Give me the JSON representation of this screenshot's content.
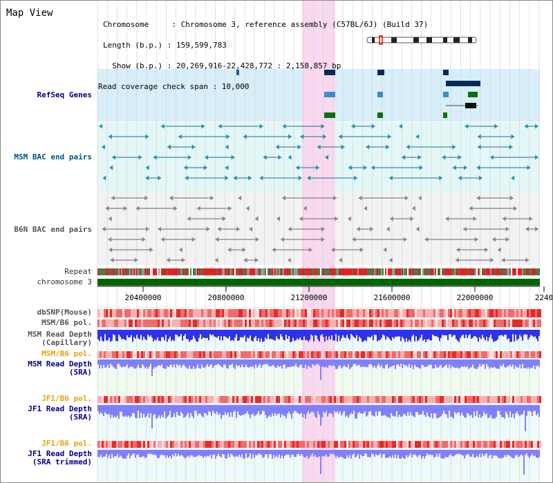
{
  "title": "Map View",
  "header": {
    "line1": "Chromosome     : Chromosome 3, reference assembly (C57BL/6J) (Build 37)",
    "line2": "Length (b.p.) : 159,599,783",
    "line3": "  Show (b.p.) : 20,269,916-22,428,772 : 2,158,857 bp",
    "line4": "Read coverage check span : 10,000"
  },
  "tracks": {
    "refseq": "RefSeq Genes",
    "msm_bac": "MSM BAC end pairs",
    "b6n_bac": "B6N BAC end pairs",
    "repeat": "Repeat",
    "chromosome": "chromosome 3",
    "dbsnp": "dbSNP(Mouse)",
    "msm_b6_pol_1": "MSM/B6 pol.",
    "msm_depth_cap_1": "MSM Read Depth",
    "msm_depth_cap_2": "(Capillary)",
    "msm_b6_pol_2": "MSM/B6 pol.",
    "msm_depth_sra_1": "MSM Read Depth",
    "msm_depth_sra_2": "(SRA)",
    "jf1_b6_pol_1": "JF1/B6 pol.",
    "jf1_depth_sra_1": "JF1 Read Depth",
    "jf1_depth_sra_2": "(SRA)",
    "jf1_b6_pol_2": "JF1/B6 pol.",
    "jf1_depth_trim_1": "JF1 Read Depth",
    "jf1_depth_trim_2": "(SRA trimmed)"
  },
  "axis": {
    "ticks": [
      "20400000",
      "20800000",
      "21200000",
      "21600000",
      "22000000",
      "2240"
    ]
  },
  "colors": {
    "refseq_bg": "#d8eef8",
    "msm_bg": "#e4f7f7",
    "b6n_bg": "#f2f2f2",
    "highlight": "#f9d9f0",
    "chromosome": "#006400",
    "repeat_red": "#e62020",
    "depth_blue": "#3030f0",
    "depth_light": "#8080ff"
  }
}
